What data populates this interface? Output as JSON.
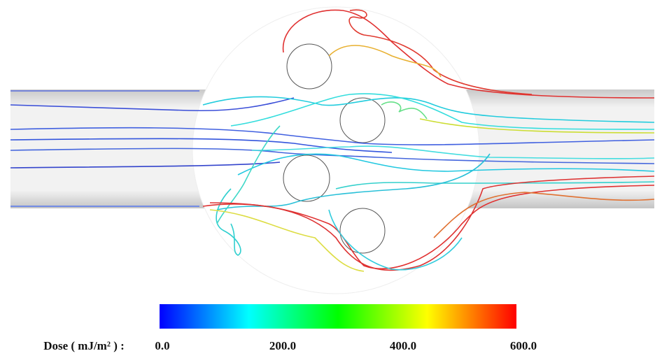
{
  "colorbar": {
    "label": "Dose ( mJ/m² ) :",
    "lim": [
      0,
      600
    ],
    "ticks": [
      {
        "value": 0,
        "label": "0.0"
      },
      {
        "value": 200,
        "label": "200.0"
      },
      {
        "value": 400,
        "label": "400.0"
      },
      {
        "value": 600,
        "label": "600.0"
      }
    ],
    "colors": [
      "#0000ff",
      "#00ffff",
      "#00ff00",
      "#ffff00",
      "#ff0000"
    ]
  }
}
